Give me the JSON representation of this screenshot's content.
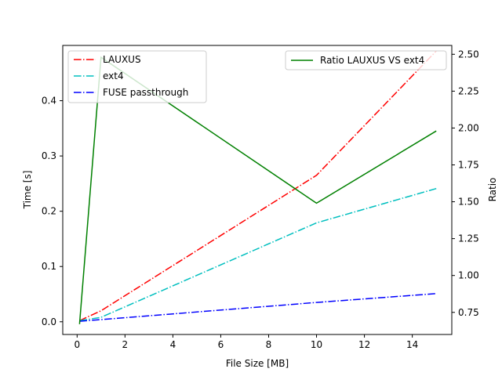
{
  "chart_data": {
    "type": "line",
    "title": "",
    "xlabel": "File Size [MB]",
    "ylabel": "Time [s]",
    "y2label": "Ratio",
    "xlim": [
      -0.6,
      15.65
    ],
    "ylim": [
      -0.023,
      0.5
    ],
    "y2lim": [
      0.6,
      2.56
    ],
    "x_ticks": [
      0,
      2,
      4,
      6,
      8,
      10,
      12,
      14
    ],
    "y_ticks": [
      0.0,
      0.1,
      0.2,
      0.3,
      0.4
    ],
    "y2_ticks": [
      0.75,
      1.0,
      1.25,
      1.5,
      1.75,
      2.0,
      2.25,
      2.5
    ],
    "grid": false,
    "legend_left_placement": "upper-left",
    "legend_right_placement": "upper-right",
    "series": [
      {
        "name": "LAUXUS",
        "axis": "left",
        "color": "#ff0000",
        "style": "dashdot",
        "x": [
          0.1,
          1,
          10,
          15
        ],
        "y": [
          0.002,
          0.02,
          0.265,
          0.49
        ]
      },
      {
        "name": "ext4",
        "axis": "left",
        "color": "#00bfbf",
        "style": "dashdot",
        "x": [
          0.1,
          1,
          10,
          15
        ],
        "y": [
          0.002,
          0.008,
          0.179,
          0.241
        ]
      },
      {
        "name": "FUSE passthrough",
        "axis": "left",
        "color": "#0000ff",
        "style": "dashdot",
        "x": [
          0.1,
          1,
          10,
          15
        ],
        "y": [
          0.001,
          0.004,
          0.035,
          0.051
        ]
      },
      {
        "name": "Ratio LAUXUS VS ext4",
        "axis": "right",
        "color": "#008000",
        "style": "solid",
        "x": [
          0.1,
          1,
          10,
          15
        ],
        "y": [
          0.67,
          2.48,
          1.49,
          1.98
        ]
      }
    ]
  }
}
